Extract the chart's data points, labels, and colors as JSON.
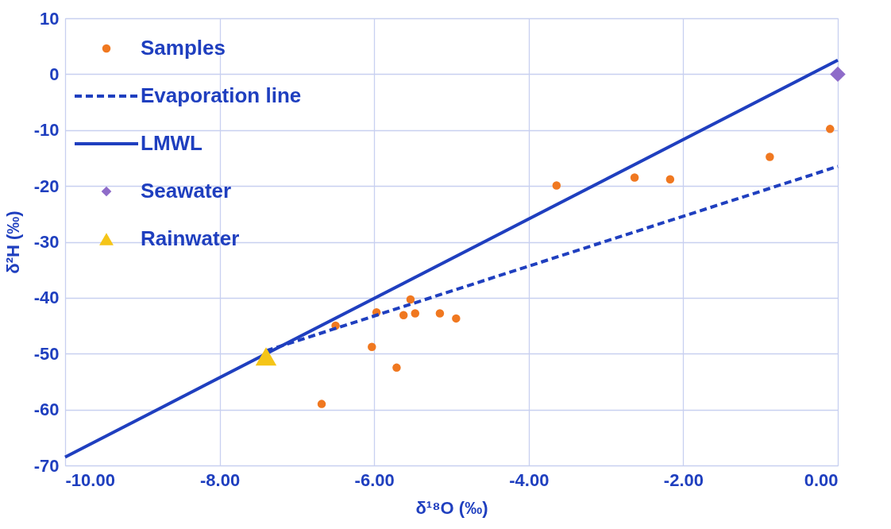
{
  "chart_data": {
    "type": "scatter",
    "xlabel": "δ¹⁸O  (‰)",
    "ylabel": "δ²H (‰)",
    "xlim": [
      -10,
      0
    ],
    "ylim": [
      -70,
      10
    ],
    "xticks": [
      {
        "value": -10,
        "label": "-10.00"
      },
      {
        "value": -8,
        "label": "-8.00"
      },
      {
        "value": -6,
        "label": "-6.00"
      },
      {
        "value": -4,
        "label": "-4.00"
      },
      {
        "value": -2,
        "label": "-2.00"
      },
      {
        "value": 0,
        "label": "0.00"
      }
    ],
    "yticks": [
      -70,
      -60,
      -50,
      -40,
      -30,
      -20,
      -10,
      0,
      10
    ],
    "grid": true,
    "legend": "top left",
    "series": [
      {
        "name": "Samples",
        "marker": "circle",
        "color": "#f07820",
        "x": [
          -0.1,
          -0.88,
          -2.17,
          -2.63,
          -3.64,
          -5.53,
          -5.97,
          -5.62,
          -5.47,
          -5.15,
          -4.94,
          -6.5,
          -6.03,
          -5.71,
          -6.68
        ],
        "values": [
          -9.8,
          -14.8,
          -18.8,
          -18.5,
          -19.9,
          -40.3,
          -42.6,
          -43.1,
          -42.8,
          -42.8,
          -43.7,
          -45.0,
          -48.8,
          -52.5,
          -59.0
        ]
      },
      {
        "name": "Evaporation line",
        "type": "line",
        "line_style": "dashed",
        "color": "#1f3fbf",
        "x": [
          -7.4,
          0
        ],
        "values": [
          -49.5,
          -16.5
        ]
      },
      {
        "name": "LMWL",
        "type": "line",
        "line_style": "solid",
        "color": "#1f3fbf",
        "x": [
          -10,
          0
        ],
        "values": [
          -68.5,
          2.5
        ]
      },
      {
        "name": "Seawater",
        "marker": "diamond",
        "color": "#8e6bc9",
        "x": [
          0
        ],
        "values": [
          0
        ]
      },
      {
        "name": "Rainwater",
        "marker": "triangle",
        "color": "#f5c518",
        "x": [
          -7.4
        ],
        "values": [
          -50.5
        ]
      }
    ]
  }
}
